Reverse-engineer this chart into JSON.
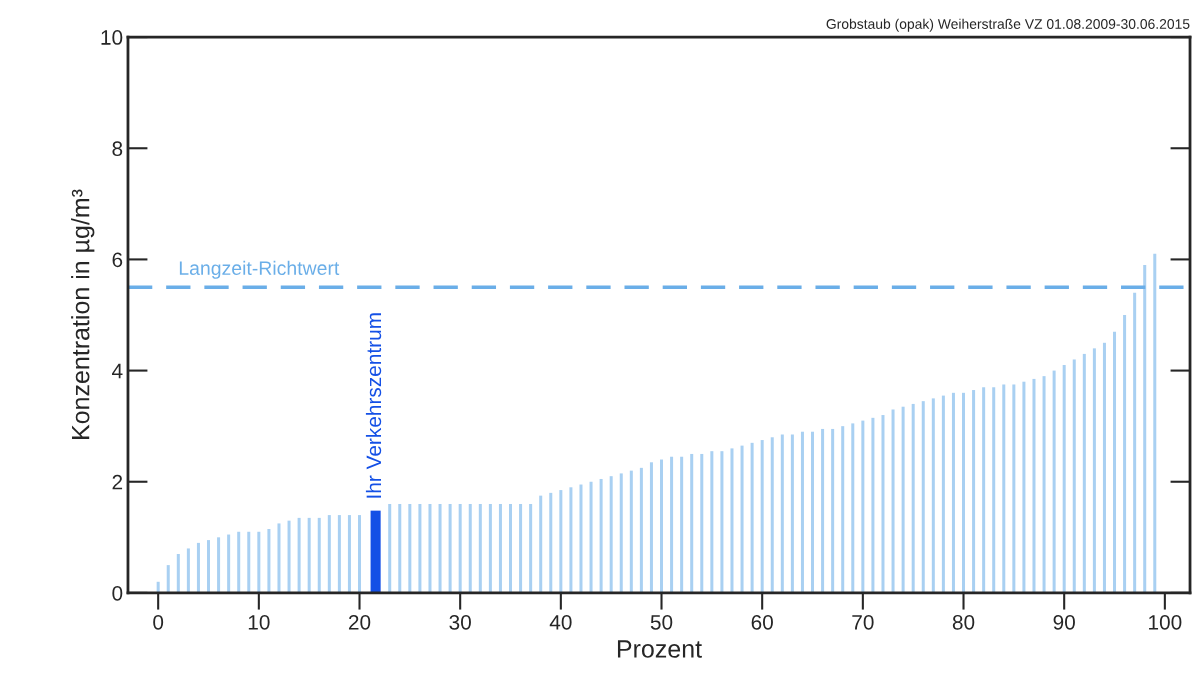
{
  "chart_data": {
    "type": "bar",
    "title": "Grobstaub (opak) Weiherstraße VZ 01.08.2009-30.06.2015",
    "xlabel": "Prozent",
    "ylabel": "Konzentration in µg/m³",
    "series": [
      {
        "color": "#a9d0f2",
        "x": [
          0,
          1,
          2,
          3,
          4,
          5,
          6,
          7,
          8,
          9,
          10,
          11,
          12,
          13,
          14,
          15,
          16,
          17,
          18,
          19,
          20,
          23,
          24,
          25,
          26,
          27,
          28,
          29,
          30,
          31,
          32,
          33,
          34,
          35,
          36,
          37,
          38,
          39,
          40,
          41,
          42,
          43,
          44,
          45,
          46,
          47,
          48,
          49,
          50,
          51,
          52,
          53,
          54,
          55,
          56,
          57,
          58,
          59,
          60,
          61,
          62,
          63,
          64,
          65,
          66,
          67,
          68,
          69,
          70,
          71,
          72,
          73,
          74,
          75,
          76,
          77,
          78,
          79,
          80,
          81,
          82,
          83,
          84,
          85,
          86,
          87,
          88,
          89,
          90,
          91,
          92,
          93,
          94,
          95,
          96,
          97,
          98,
          99
        ],
        "values": [
          0.2,
          0.5,
          0.7,
          0.8,
          0.9,
          0.95,
          1.0,
          1.05,
          1.1,
          1.1,
          1.1,
          1.15,
          1.25,
          1.3,
          1.35,
          1.35,
          1.35,
          1.4,
          1.4,
          1.4,
          1.4,
          1.6,
          1.6,
          1.6,
          1.6,
          1.6,
          1.6,
          1.6,
          1.6,
          1.6,
          1.6,
          1.6,
          1.6,
          1.6,
          1.6,
          1.6,
          1.75,
          1.8,
          1.85,
          1.9,
          1.95,
          2.0,
          2.05,
          2.1,
          2.15,
          2.2,
          2.25,
          2.35,
          2.4,
          2.45,
          2.45,
          2.5,
          2.5,
          2.55,
          2.55,
          2.6,
          2.65,
          2.7,
          2.75,
          2.8,
          2.85,
          2.85,
          2.9,
          2.9,
          2.95,
          2.95,
          3.0,
          3.05,
          3.1,
          3.15,
          3.2,
          3.3,
          3.35,
          3.4,
          3.45,
          3.5,
          3.55,
          3.6,
          3.6,
          3.65,
          3.7,
          3.7,
          3.75,
          3.75,
          3.8,
          3.85,
          3.9,
          4.0,
          4.1,
          4.2,
          4.3,
          4.4,
          4.5,
          4.7,
          5.0,
          5.4,
          5.9,
          6.1
        ]
      },
      {
        "color": "#1450e6",
        "x": [
          21.6
        ],
        "values": [
          1.48
        ]
      }
    ],
    "ref_lines": [
      {
        "axis": "y",
        "value": 5.5,
        "label": "Langzeit-Richtwert",
        "color": "#6aaee8",
        "line_style": "dashed"
      }
    ],
    "annotations": [
      {
        "text": "Ihr Verkehrszentrum",
        "x": 21.6,
        "y": 1.48
      }
    ],
    "xlim": [
      -3,
      102.5
    ],
    "ylim": [
      0,
      10
    ],
    "xticks": [
      0,
      10,
      20,
      30,
      40,
      50,
      60,
      70,
      80,
      90,
      100
    ],
    "yticks": [
      0,
      2,
      4,
      6,
      8,
      10
    ],
    "grid": false,
    "legend": false
  }
}
